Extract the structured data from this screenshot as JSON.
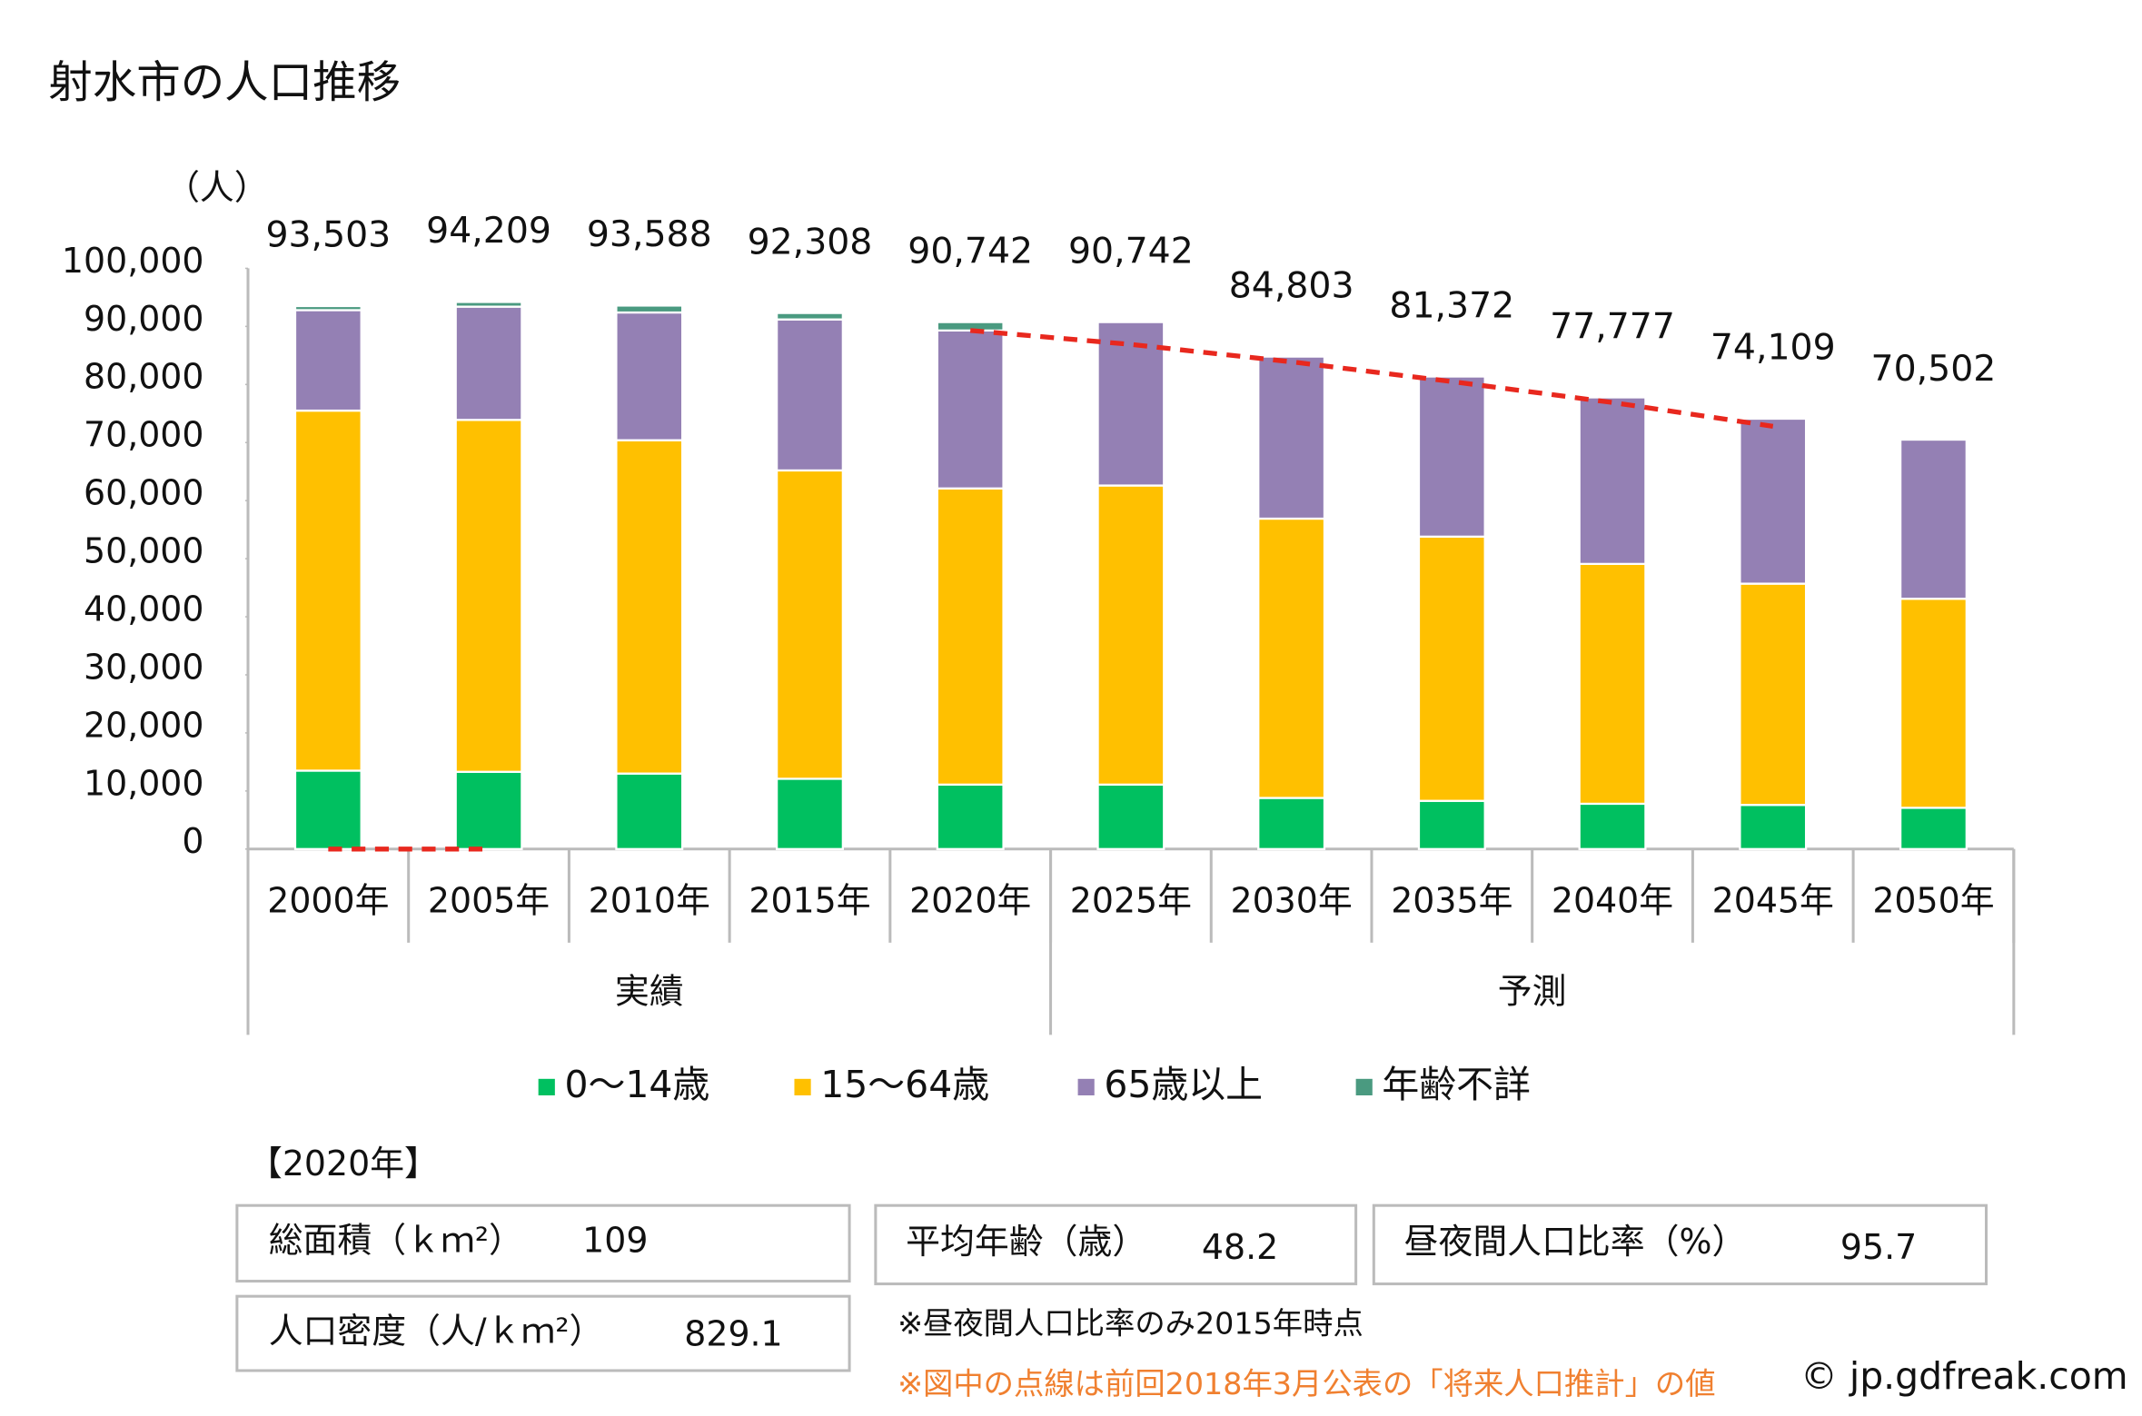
{
  "chart_data": {
    "type": "stacked_bar",
    "title": "射水市の人口推移",
    "y_label": "（人）",
    "categories": [
      "2000年",
      "2005年",
      "2010年",
      "2015年",
      "2020年",
      "2025年",
      "2030年",
      "2035年",
      "2040年",
      "2045年",
      "2050年"
    ],
    "groups": [
      {
        "label": "実績",
        "span": 5
      },
      {
        "label": "予測",
        "span": 6
      }
    ],
    "series": [
      {
        "name": "0～14歳",
        "color": "#00c060",
        "values": [
          13500,
          13300,
          13000,
          12100,
          11100,
          11100,
          8800,
          8300,
          7800,
          7600,
          7100
        ]
      },
      {
        "name": "15～64歳",
        "color": "#ffc000",
        "values": [
          62000,
          60600,
          57400,
          53100,
          51000,
          51500,
          48100,
          45500,
          41300,
          38100,
          36000
        ]
      },
      {
        "name": "65歳以上",
        "color": "#9480b4",
        "values": [
          17300,
          19500,
          22000,
          26000,
          27200,
          28142,
          27903,
          27572,
          28677,
          28409,
          27402
        ]
      },
      {
        "name": "年齢不詳",
        "color": "#4a9a80",
        "values": [
          703,
          809,
          1188,
          1108,
          1442,
          0,
          0,
          0,
          0,
          0,
          0
        ]
      }
    ],
    "totals": [
      93503,
      94209,
      93588,
      92308,
      90742,
      90742,
      84803,
      81372,
      77777,
      74109,
      70502
    ],
    "total_labels": [
      "93,503",
      "94,209",
      "93,588",
      "92,308",
      "90,742",
      "90,742",
      "84,803",
      "81,372",
      "77,777",
      "74,109",
      "70,502"
    ],
    "previous_projection": {
      "color": "#e8281e",
      "values": [
        0,
        0,
        null,
        null,
        89300,
        86900,
        83900,
        80500,
        76900,
        72800,
        null
      ]
    },
    "ylim": [
      0,
      100000
    ],
    "yticks": [
      0,
      {
        "value": 10000,
        "label": "10,000"
      },
      {
        "value": 20000,
        "label": "20,000"
      },
      {
        "value": 30000,
        "label": "30,000"
      },
      {
        "value": 40000,
        "label": "40,000"
      },
      {
        "value": 50000,
        "label": "50,000"
      },
      {
        "value": 60000,
        "label": "60,000"
      },
      {
        "value": 70000,
        "label": "70,000"
      },
      {
        "value": 80000,
        "label": "80,000"
      },
      {
        "value": 90000,
        "label": "90,000"
      },
      {
        "value": 100000,
        "label": "100,000"
      }
    ]
  },
  "info": {
    "heading": "【2020年】",
    "items": [
      {
        "label": "総面積（ｋｍ²）",
        "value": "109"
      },
      {
        "label": "平均年齢（歳）",
        "value": "48.2"
      },
      {
        "label": "昼夜間人口比率（%）",
        "value": "95.7"
      },
      {
        "label": "人口密度（人/ｋｍ²）",
        "value": "829.1"
      }
    ],
    "note": "※昼夜間人口比率のみ2015年時点",
    "note2": "※図中の点線は前回2018年3月公表の「将来人口推計」の値",
    "credit": "© jp.gdfreak.com"
  }
}
